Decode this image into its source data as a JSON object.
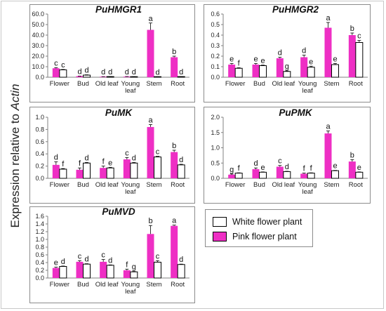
{
  "figure": {
    "ylabel_prefix": "Expression relative to ",
    "ylabel_gene": "Actin"
  },
  "legend": {
    "items": [
      {
        "label": "White flower plant",
        "color": "#ffffff"
      },
      {
        "label": "Pink flower plant",
        "color": "#ee2fc4"
      }
    ]
  },
  "colors": {
    "pink": "#ee2fc4",
    "white": "#ffffff",
    "axis": "#808080",
    "error": "#000000"
  },
  "chart_data": [
    {
      "type": "bar",
      "title": "PuHMGR1",
      "categories": [
        "Flower",
        "Bud",
        "Old leaf",
        "Young leaf",
        "Stem",
        "Root"
      ],
      "category_lines": [
        [
          "Flower"
        ],
        [
          "Bud"
        ],
        [
          "Old leaf"
        ],
        [
          "Young",
          "leaf"
        ],
        [
          "Stem"
        ],
        [
          "Root"
        ]
      ],
      "ylim": [
        0,
        60
      ],
      "ticks": [
        "0.0",
        "10.0",
        "20.0",
        "30.0",
        "40.0",
        "50.0",
        "60.0"
      ],
      "series": [
        {
          "name": "Pink flower plant",
          "values": [
            8.5,
            1.0,
            0.5,
            0.6,
            45.0,
            19.0
          ],
          "errors": [
            0.6,
            0.1,
            0.1,
            0.1,
            6.5,
            1.0
          ],
          "letters": [
            "c",
            "d",
            "d",
            "d",
            "a",
            "b"
          ]
        },
        {
          "name": "White flower plant",
          "values": [
            7.0,
            2.0,
            0.6,
            0.5,
            0.4,
            0.6
          ],
          "errors": [
            0.4,
            0.3,
            0.1,
            0.1,
            0.1,
            0.1
          ],
          "letters": [
            "c",
            "d",
            "d",
            "d",
            "d",
            "d"
          ]
        }
      ]
    },
    {
      "type": "bar",
      "title": "PuHMGR2",
      "categories": [
        "Flower",
        "Bud",
        "Old leaf",
        "Young leaf",
        "Stem",
        "Root"
      ],
      "category_lines": [
        [
          "Flower"
        ],
        [
          "Bud"
        ],
        [
          "Old leaf"
        ],
        [
          "Young",
          "leaf"
        ],
        [
          "Stem"
        ],
        [
          "Root"
        ]
      ],
      "ylim": [
        0,
        0.6
      ],
      "ticks": [
        "0.0",
        "0.1",
        "0.2",
        "0.3",
        "0.4",
        "0.5",
        "0.6"
      ],
      "series": [
        {
          "name": "Pink flower plant",
          "values": [
            0.12,
            0.12,
            0.18,
            0.19,
            0.47,
            0.4
          ],
          "errors": [
            0.01,
            0.01,
            0.01,
            0.02,
            0.05,
            0.02
          ],
          "letters": [
            "e",
            "e",
            "d",
            "d",
            "a",
            "b"
          ]
        },
        {
          "name": "White flower plant",
          "values": [
            0.085,
            0.11,
            0.055,
            0.095,
            0.12,
            0.33
          ],
          "errors": [
            0.005,
            0.005,
            0.005,
            0.01,
            0.01,
            0.02
          ],
          "letters": [
            "f",
            "e",
            "g",
            "e",
            "e",
            "c"
          ]
        }
      ]
    },
    {
      "type": "bar",
      "title": "PuMK",
      "categories": [
        "Flower",
        "Bud",
        "Old leaf",
        "Young leaf",
        "Stem",
        "Root"
      ],
      "category_lines": [
        [
          "Flower"
        ],
        [
          "Bud"
        ],
        [
          "Old leaf"
        ],
        [
          "Young",
          "leaf"
        ],
        [
          "Stem"
        ],
        [
          "Root"
        ]
      ],
      "ylim": [
        0,
        1.0
      ],
      "ticks": [
        "0.0",
        "0.2",
        "0.4",
        "0.6",
        "0.8",
        "1.0"
      ],
      "series": [
        {
          "name": "Pink flower plant",
          "values": [
            0.22,
            0.14,
            0.17,
            0.31,
            0.84,
            0.43
          ],
          "errors": [
            0.05,
            0.03,
            0.03,
            0.03,
            0.04,
            0.03
          ],
          "letters": [
            "d",
            "f",
            "f",
            "c",
            "a",
            "b"
          ]
        },
        {
          "name": "White flower plant",
          "values": [
            0.15,
            0.25,
            0.17,
            0.25,
            0.35,
            0.22
          ],
          "errors": [
            0.01,
            0.01,
            0.01,
            0.01,
            0.01,
            0.01
          ],
          "letters": [
            "f",
            "d",
            "e",
            "d",
            "c",
            "d"
          ]
        }
      ]
    },
    {
      "type": "bar",
      "title": "PuPMK",
      "categories": [
        "Flower",
        "Bud",
        "Old leaf",
        "Young leaf",
        "Stem",
        "Root"
      ],
      "category_lines": [
        [
          "Flower"
        ],
        [
          "Bud"
        ],
        [
          "Old leaf"
        ],
        [
          "Young",
          "leaf"
        ],
        [
          "Stem"
        ],
        [
          "Root"
        ]
      ],
      "ylim": [
        0,
        2.0
      ],
      "ticks": [
        "0.0",
        "0.5",
        "1.0",
        "1.5",
        "2.0"
      ],
      "series": [
        {
          "name": "Pink flower plant",
          "values": [
            0.12,
            0.3,
            0.38,
            0.15,
            1.47,
            0.55
          ],
          "errors": [
            0.02,
            0.04,
            0.04,
            0.02,
            0.08,
            0.06
          ],
          "letters": [
            "g",
            "d",
            "c",
            "f",
            "a",
            "b"
          ]
        },
        {
          "name": "White flower plant",
          "values": [
            0.17,
            0.2,
            0.22,
            0.17,
            0.25,
            0.2
          ],
          "errors": [
            0.01,
            0.01,
            0.01,
            0.01,
            0.01,
            0.01
          ],
          "letters": [
            "f",
            "e",
            "d",
            "f",
            "e",
            "e"
          ]
        }
      ]
    },
    {
      "type": "bar",
      "title": "PuMVD",
      "categories": [
        "Flower",
        "Bud",
        "Old leaf",
        "Young leaf",
        "Stem",
        "Root"
      ],
      "category_lines": [
        [
          "Flower"
        ],
        [
          "Bud"
        ],
        [
          "Old leaf"
        ],
        [
          "Young",
          "leaf"
        ],
        [
          "Stem"
        ],
        [
          "Root"
        ]
      ],
      "ylim": [
        0,
        1.6
      ],
      "ticks": [
        "0.0",
        "0.2",
        "0.4",
        "0.6",
        "0.8",
        "1.0",
        "1.2",
        "1.4",
        "1.6"
      ],
      "series": [
        {
          "name": "Pink flower plant",
          "values": [
            0.26,
            0.42,
            0.42,
            0.2,
            1.14,
            1.35
          ],
          "errors": [
            0.02,
            0.03,
            0.06,
            0.03,
            0.22,
            0.02
          ],
          "letters": [
            "e",
            "c",
            "c",
            "f",
            "b",
            "a"
          ]
        },
        {
          "name": "White flower plant",
          "values": [
            0.3,
            0.36,
            0.33,
            0.16,
            0.41,
            0.35
          ],
          "errors": [
            0.01,
            0.01,
            0.01,
            0.01,
            0.04,
            0.01
          ],
          "letters": [
            "d",
            "d",
            "d",
            "g",
            "c",
            "d"
          ]
        }
      ]
    }
  ]
}
